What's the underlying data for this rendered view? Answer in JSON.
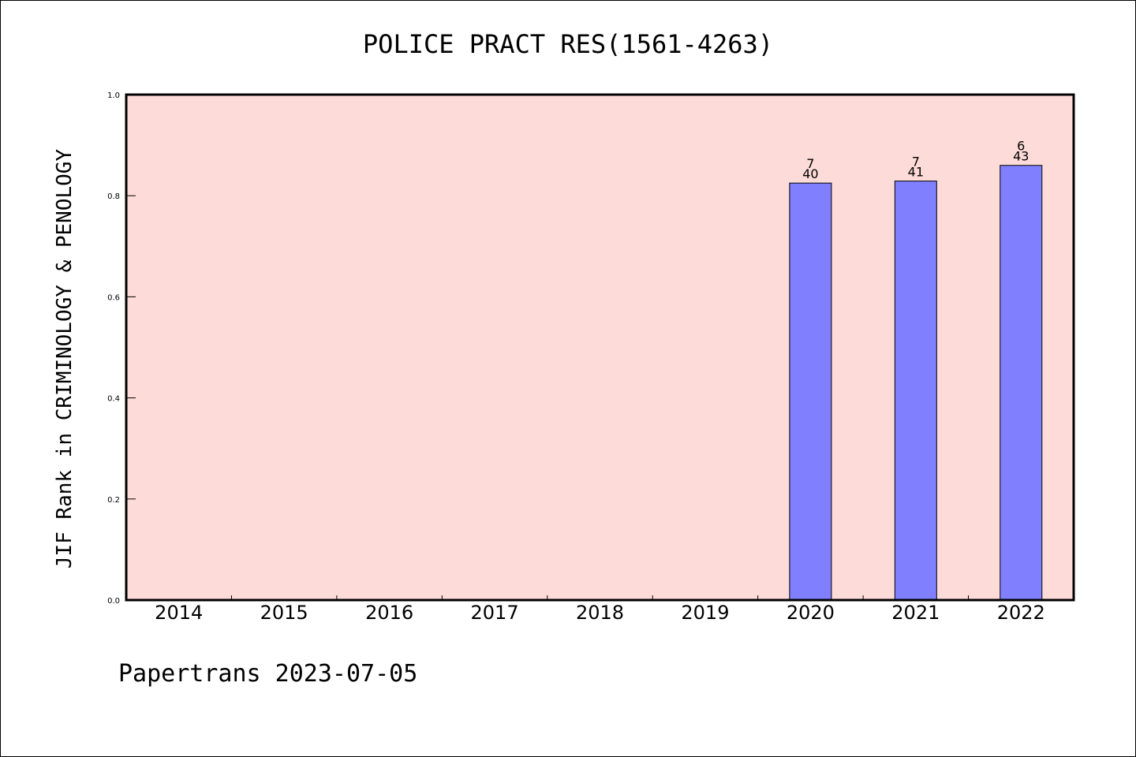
{
  "chart_data": {
    "type": "bar",
    "title": "POLICE PRACT RES(1561-4263)",
    "xlabel": "",
    "ylabel": "JIF Rank in CRIMINOLOGY & PENOLOGY",
    "categories": [
      "2014",
      "2015",
      "2016",
      "2017",
      "2018",
      "2019",
      "2020",
      "2021",
      "2022"
    ],
    "values": [
      null,
      null,
      null,
      null,
      null,
      null,
      0.825,
      0.829,
      0.86
    ],
    "rank_labels": [
      null,
      null,
      null,
      null,
      null,
      null,
      {
        "rank": "7",
        "total": "40"
      },
      {
        "rank": "7",
        "total": "41"
      },
      {
        "rank": "6",
        "total": "43"
      }
    ],
    "ylim": [
      0,
      1.0
    ],
    "yticks": [
      0.0,
      0.2,
      0.4,
      0.6,
      0.8,
      1.0
    ],
    "ytick_labels": [
      "0.0",
      "0.2",
      "0.4",
      "0.6",
      "0.8",
      "1.0"
    ],
    "grid": false,
    "colors": {
      "plot_background": "#FDDBD8",
      "bar_fill": "#8080FF",
      "bar_stroke": "#000000",
      "axis": "#000000"
    }
  },
  "footer": {
    "text": "Papertrans 2023-07-05"
  }
}
